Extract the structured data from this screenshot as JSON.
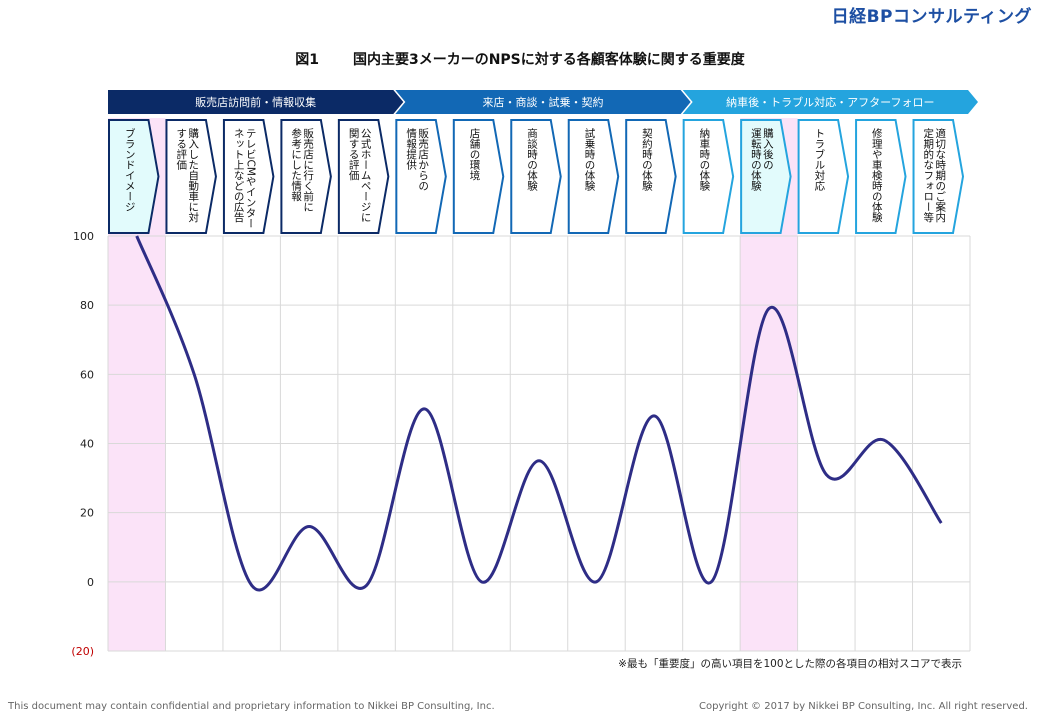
{
  "logo": "日経BPコンサルティング",
  "title": {
    "fig": "図1",
    "text": "国内主要3メーカーのNPSに対する各顧客体験に関する重要度"
  },
  "note": "※最も「重要度」の高い項目を100とした際の各項目の相対スコアで表示",
  "footer": {
    "left": "This document may contain confidential and proprietary information to Nikkei BP Consulting, Inc.",
    "right": "Copyright © 2017 by Nikkei BP Consulting, Inc. All right reserved."
  },
  "chart_data": {
    "type": "line",
    "smooth": true,
    "ylim": [
      -20,
      100
    ],
    "yticks": [
      "(20)",
      "0",
      "20",
      "40",
      "60",
      "80",
      "100"
    ],
    "grid": true,
    "phases": [
      {
        "label": "販売店訪問前・情報収集",
        "color": "#0b2a66",
        "start": 0,
        "end": 5
      },
      {
        "label": "来店・商談・試乗・契約",
        "color": "#1268b5",
        "start": 5,
        "end": 10
      },
      {
        "label": "納車後・トラブル対応・アフターフォロー",
        "color": "#24a4de",
        "start": 10,
        "end": 15
      }
    ],
    "categories": [
      "ブランドイメージ",
      "購入した自動車に対する評価",
      "テレビCMやインターネット上などの広告",
      "販売店に行く前に参考にした情報",
      "公式ホームページに関する評価",
      "販売店からの情報提供",
      "店舗の環境",
      "商談時の体験",
      "試乗時の体験",
      "契約時の体験",
      "納車時の体験",
      "購入後の運転時の体験",
      "トラブル対応",
      "修理や車検時の体験",
      "適切な時期のご案内・定期的なフォロー等"
    ],
    "label_lines": [
      [
        "ブランドイメージ"
      ],
      [
        "購入した自動車に対",
        "する評価"
      ],
      [
        "テレビCMやインター",
        "ネット上などの広告"
      ],
      [
        "販売店に行く前に",
        "参考にした情報"
      ],
      [
        "公式ホームページに",
        "関する評価"
      ],
      [
        "販売店からの",
        "情報提供"
      ],
      [
        "店舗の環境"
      ],
      [
        "商談時の体験"
      ],
      [
        "試乗時の体験"
      ],
      [
        "契約時の体験"
      ],
      [
        "納車時の体験"
      ],
      [
        "購入後の",
        "運転時の体験"
      ],
      [
        "トラブル対応"
      ],
      [
        "修理や車検時の体験"
      ],
      [
        "適切な時期のご案内",
        "定期的なフォロー等"
      ]
    ],
    "highlight": [
      0,
      11
    ],
    "values": [
      100,
      60,
      -1,
      16,
      -1,
      50,
      0,
      35,
      0,
      48,
      0,
      79,
      31,
      41,
      17
    ],
    "line_color": "#2e2d86"
  }
}
